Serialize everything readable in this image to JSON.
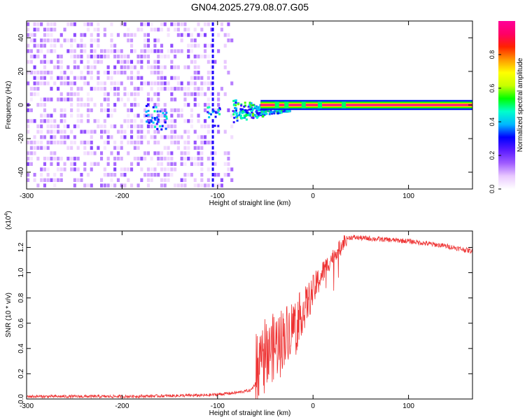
{
  "title": "GN04.2025.279.08.07.G05",
  "chart_data": [
    {
      "type": "heatmap",
      "xlabel": "Height of straight line (km)",
      "ylabel": "Frequency (Hz)",
      "xlim": [
        -300,
        167
      ],
      "ylim": [
        -50,
        50
      ],
      "xticks": [
        -300,
        -200,
        -100,
        0,
        100
      ],
      "yticks": [
        -40,
        -20,
        0,
        20,
        40
      ],
      "colorbar": {
        "label": "Normalized spectral amplitude",
        "range": [
          0,
          1
        ],
        "ticks": [
          0.0,
          0.2,
          0.4,
          0.6,
          0.8
        ],
        "tick_labels": [
          "0.0",
          "0.2",
          "0.4",
          "0.6",
          "0.8"
        ],
        "colors": [
          "#ffffff",
          "#e9c8ff",
          "#a05cff",
          "#5a1bff",
          "#0000ff",
          "#00b8ff",
          "#00ffcc",
          "#00ff00",
          "#c8ff00",
          "#ffff00",
          "#ff9900",
          "#ff2200",
          "#ff0066",
          "#ff0099"
        ]
      },
      "regions": [
        {
          "name": "noise",
          "x_range": [
            -300,
            -85
          ],
          "f_range": [
            -50,
            50
          ],
          "amplitude": 0.12
        },
        {
          "name": "transition",
          "x_range": [
            -85,
            -55
          ],
          "f_center": -3,
          "amplitude": 0.45
        },
        {
          "name": "tone",
          "x_range": [
            -55,
            167
          ],
          "f_center": 0,
          "amplitude": 1.0
        }
      ]
    },
    {
      "type": "line",
      "xlabel": "Height of straight line (km)",
      "ylabel": "SNR (10 * v/v)",
      "multiplier_label": "(x10",
      "multiplier_exp": "4",
      "multiplier_close": ")",
      "xlim": [
        -300,
        167
      ],
      "ylim": [
        0,
        1.33
      ],
      "xticks": [
        -300,
        -200,
        -100,
        0,
        100
      ],
      "yticks": [
        0.0,
        0.2,
        0.4,
        0.6,
        0.8,
        1.0,
        1.2
      ],
      "ytick_labels": [
        "0.0",
        "0.2",
        "0.4",
        "0.6",
        "0.8",
        "1.0",
        "1.2"
      ],
      "color": "#ee3333",
      "series": [
        {
          "name": "SNR",
          "x": [
            -300,
            -250,
            -200,
            -150,
            -110,
            -80,
            -65,
            -58,
            -55,
            -50,
            -40,
            -30,
            -20,
            -10,
            0,
            10,
            20,
            30,
            35,
            40,
            60,
            80,
            100,
            120,
            140,
            167
          ],
          "y": [
            0.02,
            0.02,
            0.02,
            0.025,
            0.03,
            0.05,
            0.07,
            0.15,
            0.3,
            0.35,
            0.42,
            0.5,
            0.6,
            0.7,
            0.85,
            1.0,
            1.12,
            1.22,
            1.27,
            1.28,
            1.27,
            1.26,
            1.25,
            1.23,
            1.21,
            1.17
          ]
        }
      ]
    }
  ]
}
